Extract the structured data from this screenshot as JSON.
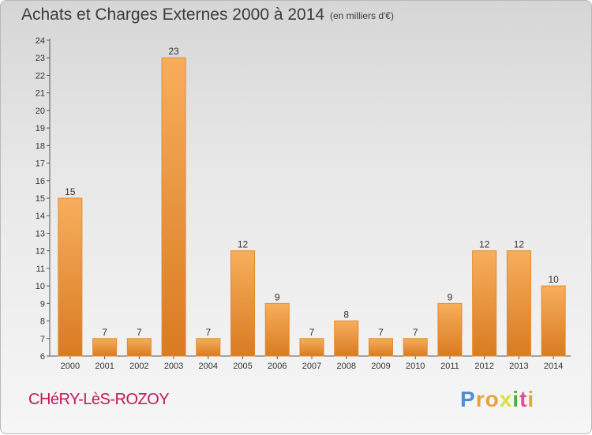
{
  "header": {
    "title": "Achats et Charges Externes 2000 à 2014",
    "unit": "(en milliers d'€)"
  },
  "footer": {
    "commune": "CHéRY-LèS-ROZOY",
    "brand": "Proxiti",
    "brand_colors": [
      "#4f8ed3",
      "#e9a23b",
      "#e9a23b",
      "#d4e23b",
      "#5aaa3a",
      "#e04f8c",
      "#e9a23b"
    ]
  },
  "colors": {
    "bar": "#f0912f",
    "bar_dark": "#c86a1a",
    "bar_light": "#f6ad5e",
    "axis": "#555555"
  },
  "chart_data": {
    "type": "bar",
    "title": "Achats et Charges Externes 2000 à 2014",
    "categories": [
      "2000",
      "2001",
      "2002",
      "2003",
      "2004",
      "2005",
      "2006",
      "2007",
      "2008",
      "2009",
      "2010",
      "2011",
      "2012",
      "2013",
      "2014"
    ],
    "values": [
      15,
      7,
      7,
      23,
      7,
      12,
      9,
      7,
      8,
      7,
      7,
      9,
      12,
      12,
      10
    ],
    "ylim": [
      6,
      24
    ],
    "yticks": [
      6,
      7,
      8,
      9,
      10,
      11,
      12,
      13,
      14,
      15,
      16,
      17,
      18,
      19,
      20,
      21,
      22,
      23,
      24
    ],
    "grid": false,
    "legend": "none"
  }
}
